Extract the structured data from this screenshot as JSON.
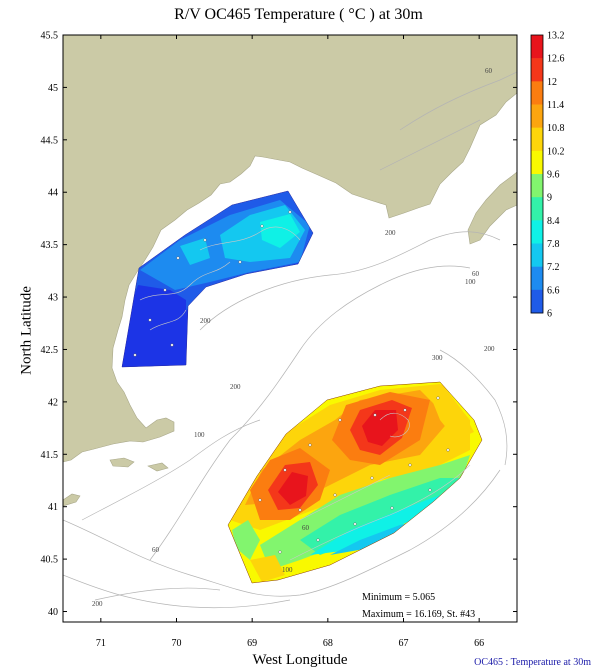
{
  "title": "R/V OC465 Temperature ( °C ) at 30m",
  "xlabel": "West Longitude",
  "ylabel": "North Latitude",
  "footer": "OC465 : Temperature at 30m",
  "stats": {
    "minimum": "Minimum = 5.065",
    "maximum": "Maximum = 16.169, St. #43"
  },
  "colors": {
    "land": "#cbcaa6",
    "water": "#ffffff",
    "bathymetry": "#b4b4b4",
    "station": "#ffffff"
  },
  "map_data": {
    "type": "contour-map",
    "lon_ticks": [
      "71",
      "70",
      "69",
      "68",
      "67",
      "66"
    ],
    "lat_ticks": [
      "45.5",
      "45",
      "44.5",
      "44",
      "43.5",
      "43",
      "42.5",
      "42",
      "41.5",
      "41",
      "40.5",
      "40"
    ],
    "lon_range": [
      -71.5,
      -65.5
    ],
    "lat_range": [
      39.9,
      45.5
    ],
    "depth_labels": [
      "60",
      "100",
      "200",
      "300"
    ],
    "colorbar": {
      "levels": [
        "13.2",
        "12.6",
        "12",
        "11.4",
        "10.8",
        "10.2",
        "9.6",
        "9",
        "8.4",
        "7.8",
        "7.2",
        "6.6",
        "6"
      ],
      "colors": [
        "#e8141c",
        "#f4371a",
        "#fb7d10",
        "#fca50f",
        "#fdd50a",
        "#f9f900",
        "#82f56e",
        "#33f2a9",
        "#0ff1e6",
        "#14c8f0",
        "#1d8bf0",
        "#1f5be8",
        "#1c34e6"
      ]
    }
  }
}
